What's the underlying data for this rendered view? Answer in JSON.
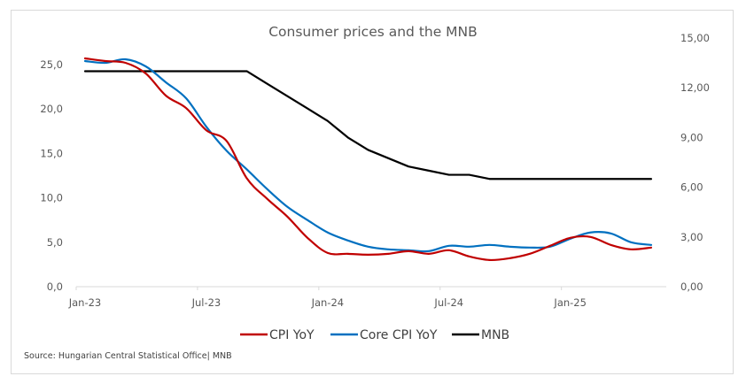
{
  "chart_data": {
    "type": "line",
    "title": "Consumer prices and the MNB",
    "xlabel": "",
    "ylabel": "",
    "y2label": "",
    "x": [
      "Jan-23",
      "Feb-23",
      "Mar-23",
      "Apr-23",
      "May-23",
      "Jun-23",
      "Jul-23",
      "Aug-23",
      "Sep-23",
      "Oct-23",
      "Nov-23",
      "Dec-23",
      "Jan-24",
      "Feb-24",
      "Mar-24",
      "Apr-24",
      "May-24",
      "Jun-24",
      "Jul-24",
      "Aug-24",
      "Sep-24",
      "Oct-24",
      "Nov-24",
      "Dec-24",
      "Jan-25",
      "Feb-25",
      "Mar-25",
      "Apr-25",
      "May-25"
    ],
    "x_tick_labels": [
      "Jan-23",
      "Jul-23",
      "Jan-24",
      "Jul-24",
      "Jan-25"
    ],
    "x_tick_indices": [
      0,
      6,
      12,
      18,
      24
    ],
    "ylim": [
      0,
      25
    ],
    "y_ticks": [
      0,
      5,
      10,
      15,
      20,
      25
    ],
    "y_tick_labels": [
      "0,0",
      "5,0",
      "10,0",
      "15,0",
      "20,0",
      "25,0"
    ],
    "y2lim": [
      0,
      15
    ],
    "y2_ticks": [
      0,
      3,
      6,
      9,
      12,
      15
    ],
    "y2_tick_labels": [
      "0,00",
      "3,00",
      "6,00",
      "9,00",
      "12,00",
      "15,00"
    ],
    "grid": false,
    "legend_position": "bottom",
    "series": [
      {
        "name": "CPI YoY",
        "axis": "left",
        "color": "#C00000",
        "smooth": true,
        "values": [
          25.7,
          25.4,
          25.2,
          24.0,
          21.5,
          20.1,
          17.6,
          16.4,
          12.2,
          9.9,
          7.9,
          5.5,
          3.8,
          3.7,
          3.6,
          3.7,
          4.0,
          3.7,
          4.1,
          3.4,
          3.0,
          3.2,
          3.7,
          4.6,
          5.5,
          5.6,
          4.7,
          4.2,
          4.4
        ]
      },
      {
        "name": "Core CPI YoY",
        "axis": "left",
        "color": "#0070C0",
        "smooth": true,
        "values": [
          25.4,
          25.2,
          25.6,
          24.8,
          23.0,
          21.2,
          18.0,
          15.3,
          13.2,
          11.0,
          9.0,
          7.5,
          6.1,
          5.2,
          4.5,
          4.2,
          4.1,
          4.0,
          4.6,
          4.5,
          4.7,
          4.5,
          4.4,
          4.5,
          5.4,
          6.1,
          6.0,
          5.0,
          4.7
        ]
      },
      {
        "name": "MNB",
        "axis": "right",
        "color": "#000000",
        "smooth": false,
        "values": [
          13.0,
          13.0,
          13.0,
          13.0,
          13.0,
          13.0,
          13.0,
          13.0,
          13.0,
          12.25,
          11.5,
          10.75,
          10.0,
          9.0,
          8.25,
          7.75,
          7.25,
          7.0,
          6.75,
          6.75,
          6.5,
          6.5,
          6.5,
          6.5,
          6.5,
          6.5,
          6.5,
          6.5,
          6.5
        ]
      }
    ],
    "source": "Source: Hungarian Central Statistical Office| MNB"
  }
}
